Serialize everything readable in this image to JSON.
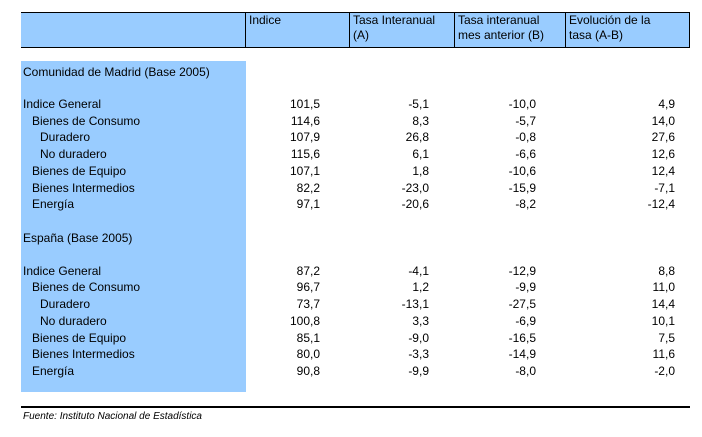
{
  "header": {
    "col0": "",
    "col1": "Indice",
    "col2_l1": "Tasa Interanual",
    "col2_l2": "(A)",
    "col3_l1": "Tasa interanual",
    "col3_l2": "mes anterior (B)",
    "col4_l1": "Evolución de la",
    "col4_l2": "tasa (A-B)"
  },
  "madrid": {
    "title": "Comunidad de Madrid (Base 2005)",
    "rows": [
      {
        "label": "Indice General",
        "v1": "101,5",
        "v2": "-5,1",
        "v3": "-10,0",
        "v4": "4,9"
      },
      {
        "label": "Bienes de Consumo",
        "v1": "114,6",
        "v2": "8,3",
        "v3": "-5,7",
        "v4": "14,0"
      },
      {
        "label": "Duradero",
        "v1": "107,9",
        "v2": "26,8",
        "v3": "-0,8",
        "v4": "27,6"
      },
      {
        "label": "No duradero",
        "v1": "115,6",
        "v2": "6,1",
        "v3": "-6,6",
        "v4": "12,6"
      },
      {
        "label": "Bienes de Equipo",
        "v1": "107,1",
        "v2": "1,8",
        "v3": "-10,6",
        "v4": "12,4"
      },
      {
        "label": "Bienes Intermedios",
        "v1": "82,2",
        "v2": "-23,0",
        "v3": "-15,9",
        "v4": "-7,1"
      },
      {
        "label": "Energía",
        "v1": "97,1",
        "v2": "-20,6",
        "v3": "-8,2",
        "v4": "-12,4"
      }
    ]
  },
  "espana": {
    "title": "España (Base 2005)",
    "rows": [
      {
        "label": "Indice General",
        "v1": "87,2",
        "v2": "-4,1",
        "v3": "-12,9",
        "v4": "8,8"
      },
      {
        "label": "Bienes de Consumo",
        "v1": "96,7",
        "v2": "1,2",
        "v3": "-9,9",
        "v4": "11,0"
      },
      {
        "label": "Duradero",
        "v1": "73,7",
        "v2": "-13,1",
        "v3": "-27,5",
        "v4": "14,4"
      },
      {
        "label": "No duradero",
        "v1": "100,8",
        "v2": "3,3",
        "v3": "-6,9",
        "v4": "10,1"
      },
      {
        "label": "Bienes de Equipo",
        "v1": "85,1",
        "v2": "-9,0",
        "v3": "-16,5",
        "v4": "7,5"
      },
      {
        "label": "Bienes Intermedios",
        "v1": "80,0",
        "v2": "-3,3",
        "v3": "-14,9",
        "v4": "11,6"
      },
      {
        "label": "Energía",
        "v1": "90,8",
        "v2": "-9,9",
        "v3": "-8,0",
        "v4": "-2,0"
      }
    ]
  },
  "source": "Fuente: Instituto Nacional de Estadística",
  "colors": {
    "highlight": "#99ccff",
    "rule": "#000000"
  }
}
